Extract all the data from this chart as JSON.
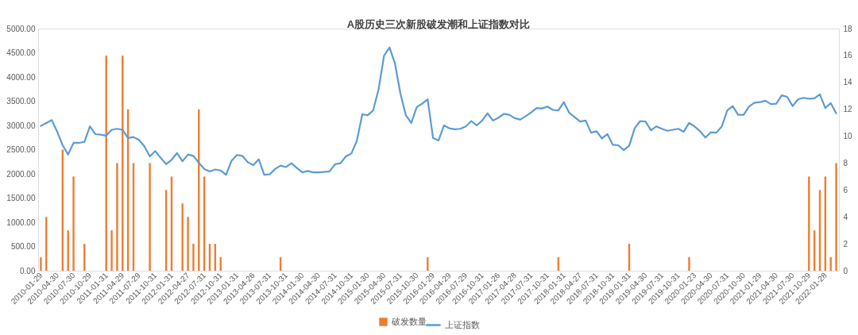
{
  "chart_data": {
    "type": "bar",
    "title": "A股历史三次新股破发潮和上证指数对比",
    "categories": [
      "2010-01-29",
      null,
      null,
      "2010-04-30",
      null,
      null,
      "2010-07-30",
      null,
      null,
      "2010-10-29",
      null,
      null,
      "2011-01-31",
      null,
      null,
      "2011-04-29",
      null,
      null,
      "2011-07-29",
      null,
      null,
      "2011-10-31",
      null,
      null,
      "2012-01-31",
      null,
      null,
      "2012-04-27",
      null,
      null,
      "2012-07-31",
      null,
      null,
      "2012-10-31",
      null,
      null,
      "2013-01-31",
      null,
      null,
      "2013-04-26",
      null,
      null,
      "2013-07-31",
      null,
      null,
      "2013-10-31",
      null,
      null,
      "2014-01-30",
      null,
      null,
      "2014-04-30",
      null,
      null,
      "2014-07-31",
      null,
      null,
      "2014-10-31",
      null,
      null,
      "2015-01-30",
      null,
      null,
      "2015-04-30",
      null,
      null,
      "2015-07-31",
      null,
      null,
      "2015-10-30",
      null,
      null,
      "2016-01-29",
      null,
      null,
      "2016-04-29",
      null,
      null,
      "2016-07-29",
      null,
      null,
      "2016-10-31",
      null,
      null,
      "2017-01-26",
      null,
      null,
      "2017-04-28",
      null,
      null,
      "2017-07-31",
      null,
      null,
      "2017-10-31",
      null,
      null,
      "2018-01-31",
      null,
      null,
      "2018-04-27",
      null,
      null,
      "2018-07-31",
      null,
      null,
      "2018-10-31",
      null,
      null,
      "2019-01-31",
      null,
      null,
      "2019-04-30",
      null,
      null,
      "2019-07-31",
      null,
      null,
      "2019-10-31",
      null,
      null,
      "2020-01-23",
      null,
      null,
      "2020-04-30",
      null,
      null,
      "2020-07-31",
      null,
      null,
      "2020-10-30",
      null,
      null,
      "2021-01-29",
      null,
      null,
      "2021-04-30",
      null,
      null,
      "2021-07-30",
      null,
      null,
      "2021-10-29",
      null,
      null,
      "2022-01-28",
      null,
      null
    ],
    "series": [
      {
        "name": "破发数量",
        "axis": "y2",
        "color": "#ed7d31",
        "values": [
          1,
          4,
          0,
          0,
          9,
          3,
          7,
          0,
          2,
          0,
          0,
          0,
          16,
          3,
          8,
          16,
          12,
          8,
          0,
          0,
          8,
          0,
          0,
          6,
          7,
          0,
          5,
          4,
          2,
          12,
          7,
          2,
          2,
          1,
          0,
          0,
          0,
          0,
          0,
          0,
          0,
          0,
          0,
          0,
          1,
          0,
          0,
          0,
          0,
          0,
          0,
          0,
          0,
          0,
          0,
          0,
          0,
          0,
          0,
          0,
          0,
          0,
          0,
          0,
          0,
          0,
          0,
          0,
          0,
          0,
          0,
          1,
          0,
          0,
          0,
          0,
          0,
          0,
          0,
          0,
          0,
          0,
          0,
          0,
          0,
          0,
          0,
          0,
          0,
          0,
          0,
          0,
          0,
          0,
          0,
          1,
          0,
          0,
          0,
          0,
          0,
          0,
          0,
          0,
          0,
          0,
          0,
          0,
          2,
          0,
          0,
          0,
          0,
          0,
          0,
          0,
          0,
          0,
          0,
          1,
          0,
          0,
          0,
          0,
          0,
          0,
          0,
          0,
          0,
          0,
          0,
          0,
          0,
          0,
          0,
          0,
          0,
          0,
          0,
          0,
          0,
          7,
          3,
          6,
          7,
          1,
          8
        ]
      },
      {
        "name": "上证指数",
        "type": "line",
        "color": "#5b9bd5",
        "values": [
          2990,
          3050,
          3110,
          2870,
          2590,
          2400,
          2640,
          2640,
          2660,
          2980,
          2820,
          2810,
          2790,
          2910,
          2930,
          2910,
          2740,
          2760,
          2700,
          2570,
          2360,
          2470,
          2330,
          2200,
          2290,
          2430,
          2260,
          2400,
          2370,
          2230,
          2100,
          2050,
          2090,
          2070,
          1980,
          2270,
          2390,
          2370,
          2240,
          2180,
          2300,
          1980,
          1990,
          2100,
          2170,
          2140,
          2220,
          2120,
          2030,
          2060,
          2030,
          2030,
          2040,
          2050,
          2200,
          2220,
          2360,
          2420,
          2680,
          3230,
          3210,
          3310,
          3750,
          4440,
          4610,
          4280,
          3660,
          3210,
          3050,
          3380,
          3450,
          3540,
          2740,
          2690,
          3000,
          2940,
          2920,
          2930,
          2980,
          3090,
          3000,
          3100,
          3250,
          3100,
          3160,
          3240,
          3220,
          3150,
          3120,
          3190,
          3270,
          3360,
          3350,
          3390,
          3320,
          3310,
          3480,
          3260,
          3170,
          3080,
          3100,
          2850,
          2880,
          2730,
          2820,
          2600,
          2590,
          2490,
          2580,
          2940,
          3090,
          3080,
          2900,
          2980,
          2930,
          2890,
          2910,
          2930,
          2870,
          3050,
          2980,
          2880,
          2750,
          2860,
          2850,
          2980,
          3310,
          3400,
          3220,
          3220,
          3390,
          3470,
          3480,
          3510,
          3440,
          3450,
          3620,
          3590,
          3400,
          3540,
          3570,
          3550,
          3560,
          3640,
          3360,
          3460,
          3250
        ]
      }
    ],
    "ylim": [
      0,
      5000
    ],
    "yticks": [
      {
        "value": 0,
        "label": "0.00"
      },
      {
        "value": 500,
        "label": "500.00"
      },
      {
        "value": 1000,
        "label": "1000.00"
      },
      {
        "value": 1500,
        "label": "1500.00"
      },
      {
        "value": 2000,
        "label": "2000.00"
      },
      {
        "value": 2500,
        "label": "2500.00"
      },
      {
        "value": 3000,
        "label": "3000.00"
      },
      {
        "value": 3500,
        "label": "3500.00"
      },
      {
        "value": 4000,
        "label": "4000.00"
      },
      {
        "value": 4500,
        "label": "4500.00"
      },
      {
        "value": 5000,
        "label": "5000.00"
      }
    ],
    "y2lim": [
      0,
      18
    ],
    "y2ticks": [
      0,
      2,
      4,
      6,
      8,
      10,
      12,
      14,
      16,
      18
    ],
    "grid": false,
    "legend": "bottom"
  }
}
